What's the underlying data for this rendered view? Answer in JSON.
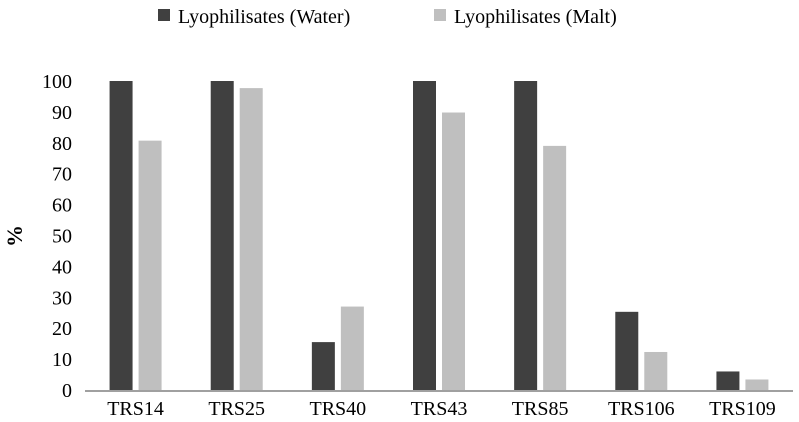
{
  "chart_data": {
    "type": "bar",
    "title": "",
    "xlabel": "",
    "ylabel": "%",
    "ylim": [
      0,
      100
    ],
    "yticks": [
      0,
      10,
      20,
      30,
      40,
      50,
      60,
      70,
      80,
      90,
      100
    ],
    "grid": false,
    "legend_position": "top-center",
    "categories": [
      "TRS14",
      "TRS25",
      "TRS40",
      "TRS43",
      "TRS85",
      "TRS106",
      "TRS109"
    ],
    "series": [
      {
        "name": "Lyophilisates (Water)",
        "color": "#404040",
        "values": [
          100,
          100,
          15.5,
          100,
          100,
          25.3,
          6
        ]
      },
      {
        "name": "Lyophilisates (Malt)",
        "color": "#bfbfbf",
        "values": [
          80.7,
          97.7,
          27,
          89.8,
          79,
          12.3,
          3.4
        ]
      }
    ]
  }
}
